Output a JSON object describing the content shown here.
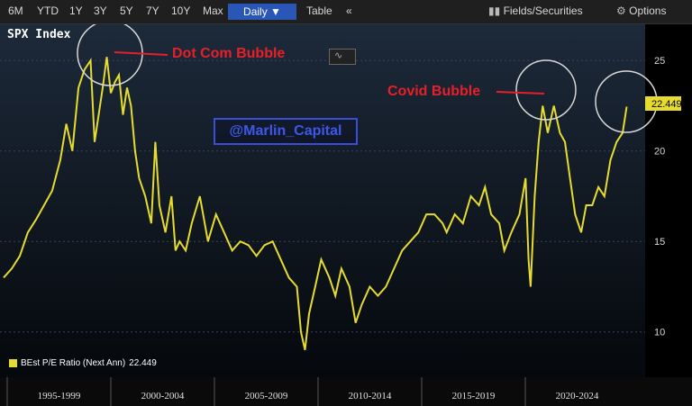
{
  "toolbar": {
    "ranges": [
      "6M",
      "YTD",
      "1Y",
      "3Y",
      "5Y",
      "7Y",
      "10Y",
      "Max"
    ],
    "frequency": "Daily ▼",
    "table": "Table",
    "collapse": "«",
    "fields": "Fields/Securities",
    "options": "Options"
  },
  "security_name": "SPX Index",
  "annotations": {
    "dotcom": "Dot Com Bubble",
    "covid": "Covid Bubble"
  },
  "watermark": "@Marlin_Capital",
  "last_value_label": "22.449",
  "legend": {
    "label": "BEst P/E Ratio (Next Ann)",
    "value": "22.449"
  },
  "colors": {
    "series": "#e6dc2f",
    "annotation": "#e81f28",
    "accent": "#2a57b7"
  },
  "chart_data": {
    "type": "line",
    "x_labels": [
      "1995-1999",
      "2000-2004",
      "2005-2009",
      "2010-2014",
      "2015-2019",
      "2020-2024"
    ],
    "y_ticks": [
      10,
      15,
      20,
      25
    ],
    "ylim": [
      7.5,
      27
    ],
    "xlim": [
      1994.2,
      2025.2
    ],
    "series": [
      {
        "name": "BEst P/E Ratio (Next Ann)",
        "x": [
          1994.2,
          1994.6,
          1995.0,
          1995.4,
          1995.8,
          1996.2,
          1996.6,
          1997.0,
          1997.3,
          1997.6,
          1997.9,
          1998.2,
          1998.5,
          1998.7,
          1998.9,
          1999.1,
          1999.3,
          1999.5,
          1999.7,
          1999.9,
          2000.1,
          2000.3,
          2000.5,
          2000.7,
          2000.9,
          2001.2,
          2001.5,
          2001.7,
          2001.9,
          2002.2,
          2002.5,
          2002.7,
          2002.9,
          2003.2,
          2003.5,
          2003.9,
          2004.3,
          2004.7,
          2005.1,
          2005.5,
          2005.9,
          2006.3,
          2006.7,
          2007.1,
          2007.5,
          2007.9,
          2008.3,
          2008.7,
          2008.9,
          2009.1,
          2009.3,
          2009.6,
          2009.9,
          2010.3,
          2010.6,
          2010.9,
          2011.3,
          2011.6,
          2011.9,
          2012.3,
          2012.7,
          2013.1,
          2013.5,
          2013.9,
          2014.3,
          2014.7,
          2015.1,
          2015.5,
          2015.9,
          2016.1,
          2016.5,
          2016.9,
          2017.3,
          2017.7,
          2018.0,
          2018.3,
          2018.7,
          2018.95,
          2019.3,
          2019.7,
          2020.0,
          2020.15,
          2020.25,
          2020.45,
          2020.65,
          2020.85,
          2021.1,
          2021.4,
          2021.7,
          2021.95,
          2022.2,
          2022.45,
          2022.75,
          2023.0,
          2023.3,
          2023.6,
          2023.9,
          2024.2,
          2024.5,
          2024.8,
          2025.0
        ],
        "y": [
          13.0,
          13.5,
          14.2,
          15.5,
          16.2,
          17.0,
          17.8,
          19.5,
          21.5,
          20.0,
          23.5,
          24.5,
          25.0,
          20.5,
          22.0,
          23.5,
          25.2,
          23.2,
          23.8,
          24.2,
          22.0,
          23.5,
          22.5,
          20.0,
          18.5,
          17.5,
          16.0,
          20.5,
          17.0,
          15.5,
          17.5,
          14.5,
          15.0,
          14.5,
          16.0,
          17.5,
          15.0,
          16.5,
          15.5,
          14.5,
          15.0,
          14.8,
          14.2,
          14.8,
          15.0,
          14.0,
          13.0,
          12.5,
          10.0,
          9.0,
          11.0,
          12.5,
          14.0,
          13.0,
          12.0,
          13.5,
          12.5,
          10.5,
          11.5,
          12.5,
          12.0,
          12.5,
          13.5,
          14.5,
          15.0,
          15.5,
          16.5,
          16.5,
          16.0,
          15.5,
          16.5,
          16.0,
          17.5,
          17.0,
          18.0,
          16.5,
          16.0,
          14.5,
          15.5,
          16.5,
          18.5,
          14.0,
          12.5,
          17.5,
          20.5,
          22.5,
          21.0,
          22.5,
          21.0,
          20.5,
          18.5,
          16.5,
          15.5,
          17.0,
          17.0,
          18.0,
          17.5,
          19.5,
          20.5,
          21.0,
          22.449
        ]
      }
    ]
  }
}
